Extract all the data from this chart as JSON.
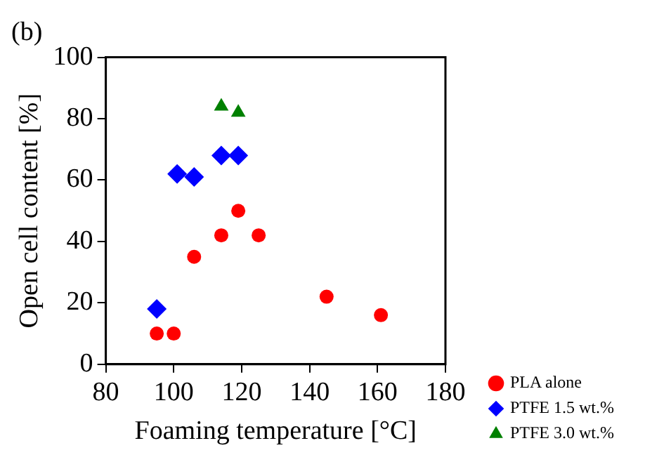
{
  "chart_data": {
    "type": "scatter",
    "title": "(b)",
    "xlabel": "Foaming temperature [°C]",
    "ylabel": "Open cell content [%]",
    "xlim": [
      80,
      180
    ],
    "xticks": [
      80,
      100,
      120,
      140,
      160,
      180
    ],
    "ylim": [
      0,
      100
    ],
    "yticks": [
      0,
      20,
      40,
      60,
      80,
      100
    ],
    "grid": false,
    "legend": "bottom right",
    "series": [
      {
        "name": "PLA alone",
        "color": "#ff0000",
        "marker": "circle",
        "x": [
          95,
          100,
          106,
          114,
          119,
          125,
          145,
          161
        ],
        "values": [
          10,
          10,
          35,
          42,
          50,
          42,
          22,
          16
        ]
      },
      {
        "name": "PTFE 1.5 wt.%",
        "color": "#0000ff",
        "marker": "diamond",
        "x": [
          95,
          101,
          106,
          114,
          119
        ],
        "values": [
          18,
          62,
          61,
          68,
          68
        ]
      },
      {
        "name": "PTFE 3.0 wt.%",
        "color": "#008000",
        "marker": "triangle",
        "x": [
          114,
          119
        ],
        "values": [
          84,
          82
        ]
      }
    ]
  }
}
